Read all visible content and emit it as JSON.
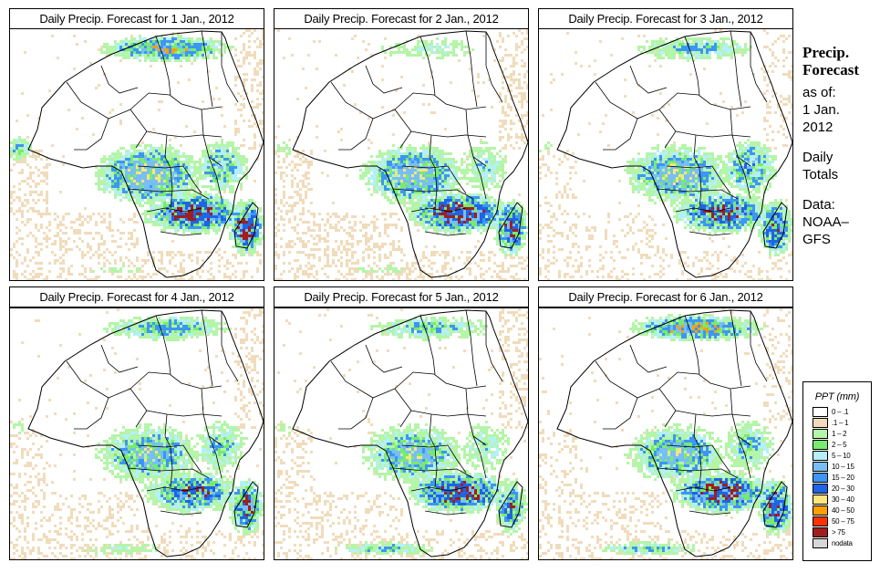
{
  "panels": [
    {
      "title": "Daily Precip. Forecast for  1 Jan., 2012",
      "date": "1 Jan., 2012",
      "rain": {
        "north_med": 0.8,
        "west_atlantic": 0.5,
        "congo": 0.9,
        "east_africa": 0.6,
        "zambia_moz": 1.0,
        "madagascar": 1.0,
        "south_atlantic_band": 0.2,
        "dry_speckle": 0.8
      }
    },
    {
      "title": "Daily Precip. Forecast for  2 Jan., 2012",
      "date": "2 Jan., 2012",
      "rain": {
        "north_med": 0.3,
        "west_atlantic": 0.2,
        "congo": 0.8,
        "east_africa": 0.4,
        "zambia_moz": 1.0,
        "madagascar": 0.9,
        "south_atlantic_band": 0.2,
        "dry_speckle": 1.0
      }
    },
    {
      "title": "Daily Precip. Forecast for  3 Jan., 2012",
      "date": "3 Jan., 2012",
      "rain": {
        "north_med": 0.5,
        "west_atlantic": 0.2,
        "congo": 0.8,
        "east_africa": 0.7,
        "zambia_moz": 0.9,
        "madagascar": 0.9,
        "south_atlantic_band": 0.1,
        "dry_speckle": 0.6
      }
    },
    {
      "title": "Daily Precip. Forecast for  4 Jan., 2012",
      "date": "4 Jan., 2012",
      "rain": {
        "north_med": 0.6,
        "west_atlantic": 0.2,
        "congo": 0.7,
        "east_africa": 0.5,
        "zambia_moz": 0.8,
        "madagascar": 0.9,
        "south_atlantic_band": 0.3,
        "dry_speckle": 0.8
      }
    },
    {
      "title": "Daily Precip. Forecast for  5 Jan., 2012",
      "date": "5 Jan., 2012",
      "rain": {
        "north_med": 0.5,
        "west_atlantic": 0.2,
        "congo": 0.7,
        "east_africa": 0.4,
        "zambia_moz": 1.0,
        "madagascar": 0.7,
        "south_atlantic_band": 0.5,
        "dry_speckle": 0.8
      }
    },
    {
      "title": "Daily Precip. Forecast for  6 Jan., 2012",
      "date": "6 Jan., 2012",
      "rain": {
        "north_med": 0.9,
        "west_atlantic": 0.1,
        "congo": 0.7,
        "east_africa": 0.5,
        "zambia_moz": 1.0,
        "madagascar": 1.0,
        "south_atlantic_band": 0.5,
        "dry_speckle": 0.7
      }
    }
  ],
  "side_info": {
    "title_line1": "Precip.",
    "title_line2": "Forecast",
    "as_of_label": "as of:",
    "as_of_line1": "1 Jan.",
    "as_of_line2": "2012",
    "totals_line1": "Daily",
    "totals_line2": "Totals",
    "data_line1": "Data:",
    "data_line2": "NOAA–",
    "data_line3": "GFS"
  },
  "legend": {
    "title": "PPT (mm)",
    "items": [
      {
        "label": "0 – .1",
        "color": "#ffffff"
      },
      {
        "label": ".1 – 1",
        "color": "#f0dcbc"
      },
      {
        "label": "1 – 2",
        "color": "#b4f5a8"
      },
      {
        "label": "2 – 5",
        "color": "#78eb6e"
      },
      {
        "label": "5 – 10",
        "color": "#b4f0fa"
      },
      {
        "label": "10 – 15",
        "color": "#78bef5"
      },
      {
        "label": "15 – 20",
        "color": "#3c96f5"
      },
      {
        "label": "20 – 30",
        "color": "#1e64e6"
      },
      {
        "label": "30 – 40",
        "color": "#ffe67a"
      },
      {
        "label": "40 – 50",
        "color": "#ffa000"
      },
      {
        "label": "50 – 75",
        "color": "#ff3200"
      },
      {
        "label": "> 75",
        "color": "#a01e1e"
      },
      {
        "label": "nodata",
        "color": "#d7d7d7"
      }
    ]
  }
}
